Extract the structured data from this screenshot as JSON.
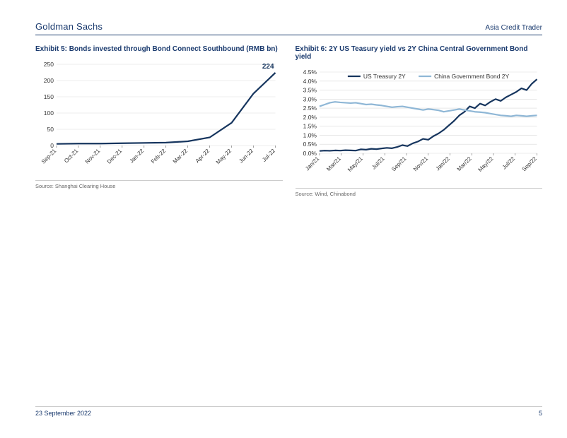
{
  "header": {
    "brand": "Goldman Sachs",
    "doc_title": "Asia Credit Trader"
  },
  "footer": {
    "date": "23 September 2022",
    "page": "5"
  },
  "chart5": {
    "type": "line",
    "title": "Exhibit 5: Bonds invested through Bond Connect Southbound (RMB bn)",
    "source": "Source: Shanghai Clearing House",
    "x_labels": [
      "Sep-21",
      "Oct-21",
      "Nov-21",
      "Dec-21",
      "Jan-22",
      "Feb-22",
      "Mar-22",
      "Apr-22",
      "May-22",
      "Jun-22",
      "Jul-22"
    ],
    "series": {
      "name": "Southbound",
      "color": "#16355e",
      "line_width": 2.2,
      "values": [
        5,
        6,
        6,
        7,
        8,
        9,
        13,
        25,
        70,
        160,
        224
      ]
    },
    "endpoint_label": "224",
    "ylim": [
      0,
      250
    ],
    "ytick_step": 50,
    "grid_color": "#d9d9d9",
    "axis_color": "#666666",
    "tick_font_size": 8.5,
    "label_font_size": 8,
    "background_color": "#ffffff"
  },
  "chart6": {
    "type": "line",
    "title": "Exhibit 6: 2Y US Teasury yield vs 2Y China Central Government Bond yield",
    "source": "Source: Wind, Chinabond",
    "x_labels": [
      "Jan/21",
      "Mar/21",
      "May/21",
      "Jul/21",
      "Sep/21",
      "Nov/21",
      "Jan/22",
      "Mar/22",
      "May/22",
      "Jul/22",
      "Sep/22"
    ],
    "ylim": [
      0,
      4.5
    ],
    "ytick_step": 0.5,
    "y_suffix": "%",
    "grid_color": "#d9d9d9",
    "axis_color": "#666666",
    "tick_font_size": 8.5,
    "label_font_size": 8,
    "background_color": "#ffffff",
    "legend": {
      "items": [
        {
          "label": "US Treasury 2Y",
          "color": "#16355e",
          "line_width": 2.2
        },
        {
          "label": "China Government Bond 2Y",
          "color": "#8fb7d6",
          "line_width": 2.2
        }
      ]
    },
    "series": [
      {
        "name": "US Treasury 2Y",
        "color": "#16355e",
        "line_width": 2.2,
        "values": [
          0.13,
          0.15,
          0.14,
          0.16,
          0.15,
          0.17,
          0.16,
          0.15,
          0.22,
          0.2,
          0.25,
          0.23,
          0.27,
          0.3,
          0.28,
          0.35,
          0.45,
          0.4,
          0.55,
          0.65,
          0.8,
          0.75,
          0.95,
          1.1,
          1.3,
          1.55,
          1.8,
          2.1,
          2.3,
          2.6,
          2.5,
          2.75,
          2.65,
          2.85,
          3.0,
          2.9,
          3.1,
          3.25,
          3.4,
          3.6,
          3.5,
          3.85,
          4.1
        ]
      },
      {
        "name": "China Government Bond 2Y",
        "color": "#8fb7d6",
        "line_width": 2.2,
        "values": [
          2.6,
          2.7,
          2.8,
          2.85,
          2.82,
          2.8,
          2.78,
          2.8,
          2.75,
          2.7,
          2.72,
          2.68,
          2.65,
          2.6,
          2.55,
          2.58,
          2.6,
          2.55,
          2.5,
          2.45,
          2.4,
          2.45,
          2.42,
          2.38,
          2.3,
          2.35,
          2.4,
          2.45,
          2.4,
          2.35,
          2.3,
          2.28,
          2.25,
          2.2,
          2.15,
          2.1,
          2.08,
          2.05,
          2.1,
          2.08,
          2.05,
          2.08,
          2.1
        ]
      }
    ]
  }
}
